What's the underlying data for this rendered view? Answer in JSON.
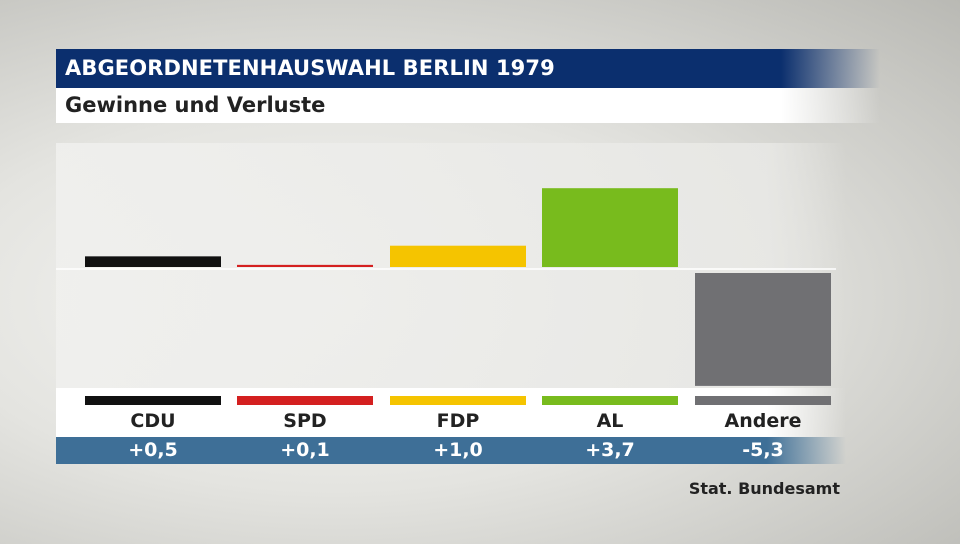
{
  "header": {
    "title": "ABGEORDNETENHAUSWAHL BERLIN 1979",
    "subtitle": "Gewinne und Verluste"
  },
  "source": "Stat. Bundesamt",
  "chart_data": {
    "type": "bar",
    "title": "ABGEORDNETENHAUSWAHL BERLIN 1979",
    "subtitle": "Gewinne und Verluste",
    "categories": [
      "CDU",
      "SPD",
      "FDP",
      "AL",
      "Andere"
    ],
    "values": [
      0.5,
      0.1,
      1.0,
      3.7,
      -5.3
    ],
    "value_labels": [
      "+0,5",
      "+0,1",
      "+1,0",
      "+3,7",
      "-5,3"
    ],
    "colors": [
      "#111111",
      "#d42020",
      "#f5c400",
      "#78bb1d",
      "#707073"
    ],
    "grid": false,
    "legend": "none"
  },
  "labels": {
    "cdu": "CDU",
    "spd": "SPD",
    "fdp": "FDP",
    "al": "AL",
    "andere": "Andere"
  },
  "value_texts": {
    "cdu": "+0,5",
    "spd": "+0,1",
    "fdp": "+1,0",
    "al": "+3,7",
    "andere": "-5,3"
  }
}
